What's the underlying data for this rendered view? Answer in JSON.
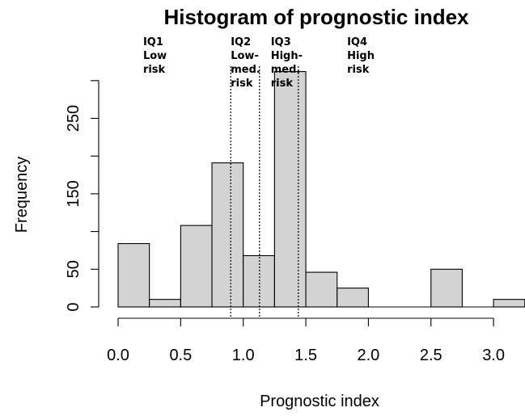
{
  "chart_data": {
    "type": "bar",
    "title": "Histogram of prognostic index",
    "xlabel": "Prognostic index",
    "ylabel": "Frequency",
    "bins": [
      {
        "start": 0.0,
        "end": 0.25,
        "count": 84
      },
      {
        "start": 0.25,
        "end": 0.5,
        "count": 10
      },
      {
        "start": 0.5,
        "end": 0.75,
        "count": 108
      },
      {
        "start": 0.75,
        "end": 1.0,
        "count": 191
      },
      {
        "start": 1.0,
        "end": 1.25,
        "count": 68
      },
      {
        "start": 1.25,
        "end": 1.5,
        "count": 312
      },
      {
        "start": 1.5,
        "end": 1.75,
        "count": 46
      },
      {
        "start": 1.75,
        "end": 2.0,
        "count": 25
      },
      {
        "start": 2.0,
        "end": 2.25,
        "count": 0
      },
      {
        "start": 2.25,
        "end": 2.5,
        "count": 0
      },
      {
        "start": 2.5,
        "end": 2.75,
        "count": 50
      },
      {
        "start": 2.75,
        "end": 3.0,
        "count": 0
      },
      {
        "start": 3.0,
        "end": 3.25,
        "count": 10
      }
    ],
    "x_ticks": [
      0.0,
      0.5,
      1.0,
      1.5,
      2.0,
      2.5,
      3.0
    ],
    "x_tick_labels": [
      "0.0",
      "0.5",
      "1.0",
      "1.5",
      "2.0",
      "2.5",
      "3.0"
    ],
    "y_ticks": [
      0,
      50,
      150,
      250
    ],
    "y_tick_labels": [
      "0",
      "50",
      "150",
      "250"
    ],
    "xlim": [
      -0.05,
      3.25
    ],
    "ylim": [
      0,
      315
    ],
    "bar_color": "#d3d3d3",
    "edge_color": "#000000",
    "quartile_cutoffs": [
      0.9,
      1.13,
      1.44
    ],
    "annotations": [
      {
        "x": 0.2,
        "lines": [
          "IQ1",
          "Low",
          "risk"
        ]
      },
      {
        "x": 0.9,
        "lines": [
          "IQ2",
          "Low-",
          "med.",
          "risk"
        ]
      },
      {
        "x": 1.22,
        "lines": [
          "IQ3",
          "High-",
          "med.",
          "risk"
        ]
      },
      {
        "x": 1.83,
        "lines": [
          "IQ4",
          "High",
          "risk"
        ]
      }
    ]
  }
}
